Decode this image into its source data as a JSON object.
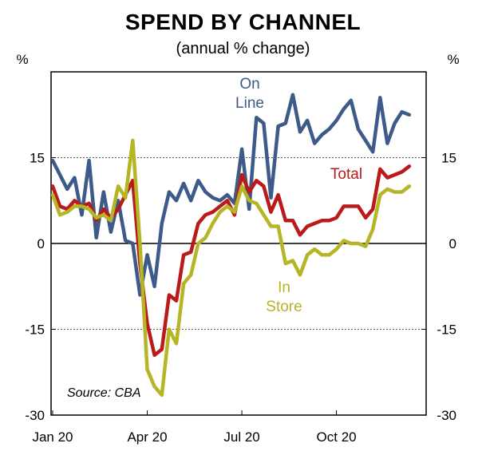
{
  "chart_data": {
    "type": "line",
    "title": "SPEND BY CHANNEL",
    "subtitle": "(annual % change)",
    "ylabel_left": "%",
    "ylabel_right": "%",
    "ylim": [
      -30,
      30
    ],
    "yticks": [
      -30,
      -15,
      0,
      15
    ],
    "ytick_labels": [
      "-30",
      "-15",
      "0",
      "15"
    ],
    "gridlines_at": [
      -15,
      15
    ],
    "x_range": [
      0,
      51
    ],
    "xticks": [
      {
        "x": 0,
        "label": "Jan 20"
      },
      {
        "x": 13,
        "label": "Apr 20"
      },
      {
        "x": 26,
        "label": "Jul 20"
      },
      {
        "x": 39,
        "label": "Oct 20"
      }
    ],
    "source": "Source: CBA",
    "series": [
      {
        "name": "Online",
        "label_lines": [
          "On",
          "Line"
        ],
        "color": "#3D5A88",
        "values": [
          14.5,
          12,
          9.5,
          11.5,
          5,
          14.5,
          1,
          9,
          2,
          7.5,
          0.5,
          0,
          -9,
          -2,
          -7.5,
          3.5,
          9,
          7.5,
          10.5,
          7.5,
          11,
          9,
          8,
          7.5,
          8.5,
          7,
          16.5,
          6,
          22,
          21,
          8,
          20.5,
          21,
          26,
          19.5,
          21.5,
          17.5,
          19,
          20,
          21.5,
          23.5,
          25,
          20,
          18,
          16,
          25.5,
          17.5,
          21,
          23,
          22.5
        ]
      },
      {
        "name": "Total",
        "label_lines": [
          "Total"
        ],
        "color": "#BB1A1A",
        "values": [
          10,
          6.5,
          6,
          7.5,
          6.5,
          7,
          4,
          6,
          4.5,
          6,
          8.5,
          11,
          -3.5,
          -14,
          -19.5,
          -18.5,
          -9,
          -10,
          -2,
          -1.5,
          3.5,
          5,
          5.5,
          6.5,
          7.5,
          5,
          12,
          9,
          11,
          10,
          5.5,
          8.5,
          4,
          4,
          1.5,
          3,
          3.5,
          4,
          4,
          4.5,
          6.5,
          6.5,
          6.5,
          4.5,
          6,
          13,
          11.5,
          12,
          12.5,
          13.5
        ]
      },
      {
        "name": "In Store",
        "label_lines": [
          "In",
          "Store"
        ],
        "color": "#B5B525",
        "values": [
          8.5,
          5,
          5.5,
          6.5,
          6.5,
          6,
          4.5,
          5,
          4,
          10,
          8,
          18,
          0,
          -22,
          -25,
          -26.5,
          -15,
          -17.5,
          -7,
          -5.5,
          0,
          1,
          3.5,
          5.5,
          6.5,
          5.5,
          10,
          7.5,
          7,
          5,
          3,
          3,
          -3.5,
          -3,
          -5.5,
          -2,
          -1,
          -2,
          -2,
          -1,
          0.5,
          0,
          0,
          -0.5,
          2.5,
          8.5,
          9.5,
          9,
          9,
          10
        ]
      }
    ]
  }
}
